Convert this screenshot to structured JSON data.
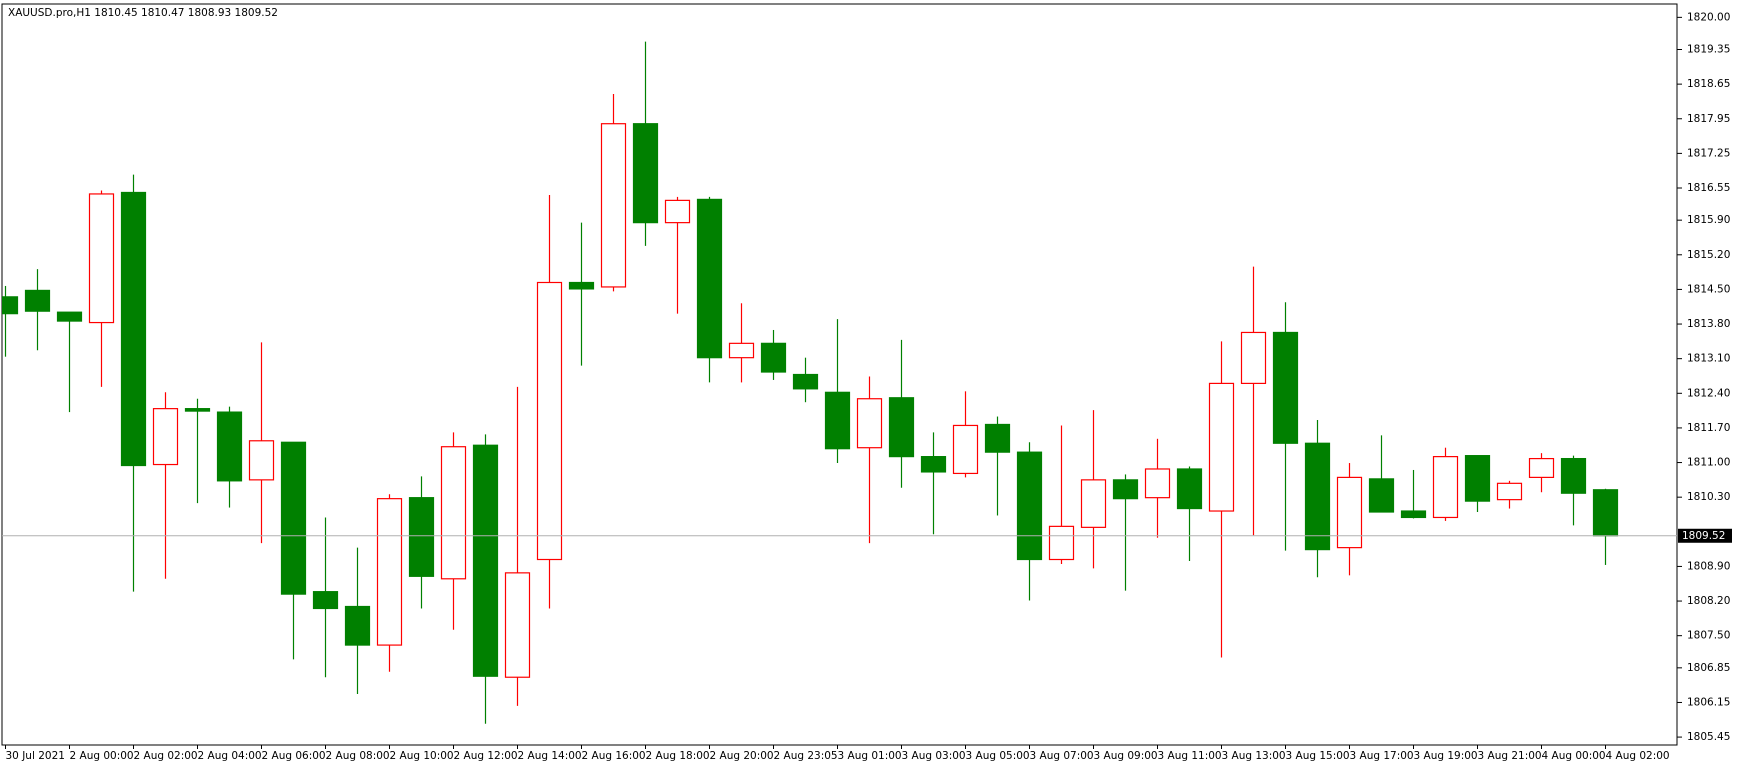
{
  "chart_data": {
    "type": "candlestick",
    "title": "XAUUSD.pro,H1  1810.45 1810.47 1808.93 1809.52",
    "categories": [
      "30 Jul 2021",
      null,
      "2 Aug 00:00",
      null,
      "2 Aug 02:00",
      null,
      "2 Aug 04:00",
      null,
      "2 Aug 06:00",
      null,
      "2 Aug 08:00",
      null,
      "2 Aug 10:00",
      null,
      "2 Aug 12:00",
      null,
      "2 Aug 14:00",
      null,
      "2 Aug 16:00",
      null,
      "2 Aug 18:00",
      null,
      "2 Aug 20:00",
      null,
      "2 Aug 23:05",
      null,
      "3 Aug 01:00",
      null,
      "3 Aug 03:00",
      null,
      "3 Aug 05:00",
      null,
      "3 Aug 07:00",
      null,
      "3 Aug 09:00",
      null,
      "3 Aug 11:00",
      null,
      "3 Aug 13:00",
      null,
      "3 Aug 15:00",
      null,
      "3 Aug 17:00",
      null,
      "3 Aug 19:00",
      null,
      "3 Aug 21:00",
      null,
      "4 Aug 00:00",
      null,
      "4 Aug 02:00"
    ],
    "open": [
      1814.35,
      1814.48,
      1814.04,
      1813.83,
      1816.46,
      1810.96,
      1812.09,
      1812.02,
      1810.65,
      1811.41,
      1808.39,
      1808.09,
      1807.31,
      1810.29,
      1808.65,
      1811.35,
      1806.66,
      1809.04,
      1814.64,
      1814.55,
      1817.85,
      1815.85,
      1816.32,
      1813.12,
      1813.41,
      1812.78,
      1812.42,
      1811.3,
      1812.31,
      1811.12,
      1810.78,
      1811.77,
      1811.21,
      1809.04,
      1809.69,
      1810.65,
      1810.29,
      1810.87,
      1810.02,
      1812.6,
      1813.63,
      1811.39,
      1809.28,
      1810.67,
      1810.02,
      1809.89,
      1811.14,
      1810.25,
      1810.7,
      1811.08,
      1810.45
    ],
    "high": [
      1814.57,
      1814.91,
      1814.04,
      1816.5,
      1816.82,
      1812.42,
      1812.29,
      1812.13,
      1813.43,
      1811.41,
      1809.89,
      1809.28,
      1810.36,
      1810.72,
      1811.61,
      1811.57,
      1812.53,
      1816.41,
      1815.85,
      1818.45,
      1819.51,
      1816.37,
      1816.37,
      1814.22,
      1813.68,
      1813.12,
      1813.9,
      1812.74,
      1813.48,
      1811.61,
      1812.44,
      1811.93,
      1811.41,
      1811.75,
      1812.06,
      1810.76,
      1811.48,
      1810.92,
      1813.45,
      1814.96,
      1814.24,
      1811.86,
      1810.99,
      1811.55,
      1810.85,
      1811.3,
      1811.14,
      1810.63,
      1811.19,
      1811.14,
      1810.47
    ],
    "low": [
      1813.14,
      1813.27,
      1812.02,
      1812.53,
      1808.39,
      1808.65,
      1810.18,
      1810.09,
      1809.37,
      1807.02,
      1806.66,
      1806.32,
      1806.77,
      1808.05,
      1807.62,
      1805.72,
      1806.08,
      1808.05,
      1812.96,
      1814.46,
      1815.38,
      1814.01,
      1812.62,
      1812.62,
      1812.67,
      1812.22,
      1810.99,
      1809.37,
      1810.49,
      1809.55,
      1810.7,
      1809.93,
      1808.21,
      1808.95,
      1808.86,
      1808.41,
      1809.48,
      1809.01,
      1807.06,
      1809.53,
      1809.22,
      1808.68,
      1808.72,
      1810.0,
      1809.87,
      1809.82,
      1810.0,
      1810.07,
      1810.4,
      1809.73,
      1808.93
    ],
    "close": [
      1814.01,
      1814.06,
      1813.86,
      1816.43,
      1810.94,
      1812.09,
      1812.04,
      1810.63,
      1811.44,
      1808.34,
      1808.05,
      1807.31,
      1810.27,
      1808.7,
      1811.32,
      1806.68,
      1808.77,
      1814.64,
      1814.51,
      1817.85,
      1815.85,
      1816.3,
      1813.12,
      1813.41,
      1812.83,
      1812.49,
      1811.28,
      1812.29,
      1811.12,
      1810.81,
      1811.75,
      1811.21,
      1809.04,
      1809.71,
      1810.65,
      1810.27,
      1810.87,
      1810.07,
      1812.6,
      1813.63,
      1811.39,
      1809.24,
      1810.7,
      1810.0,
      1809.89,
      1811.12,
      1810.22,
      1810.58,
      1811.08,
      1810.38,
      1809.52
    ],
    "up_color": "#ff0000",
    "down_color": "#008000",
    "ylim": [
      1805.29,
      1820.27
    ],
    "yticks": [
      {
        "value": 1820.0,
        "label": "1820.00"
      },
      1819.35,
      1818.65,
      1817.95,
      1817.25,
      1816.55,
      {
        "value": 1815.9,
        "label": "1815.90"
      },
      {
        "value": 1815.2,
        "label": "1815.20"
      },
      {
        "value": 1814.5,
        "label": "1814.50"
      },
      {
        "value": 1813.8,
        "label": "1813.80"
      },
      {
        "value": 1813.1,
        "label": "1813.10"
      },
      {
        "value": 1812.4,
        "label": "1812.40"
      },
      {
        "value": 1811.7,
        "label": "1811.70"
      },
      {
        "value": 1811.0,
        "label": "1811.00"
      },
      {
        "value": 1810.3,
        "label": "1810.30"
      },
      {
        "value": 1808.9,
        "label": "1808.90"
      },
      {
        "value": 1808.2,
        "label": "1808.20"
      },
      {
        "value": 1807.5,
        "label": "1807.50"
      },
      1806.85,
      1806.15,
      1805.45
    ],
    "price_line": 1809.52
  }
}
